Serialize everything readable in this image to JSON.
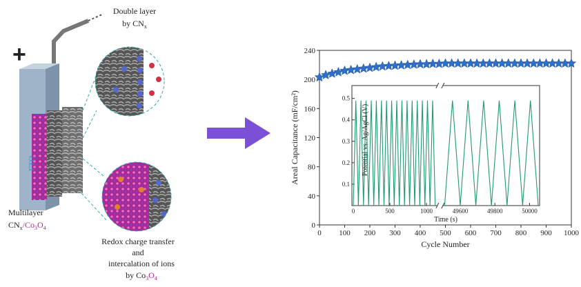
{
  "illustration": {
    "plus": "+",
    "double_layer": [
      "Double layer",
      "by CN",
      "x"
    ],
    "fto": "FTO",
    "multilayer": [
      "Multilayer",
      "CN",
      "x",
      "/Co",
      "3",
      "O",
      "4"
    ],
    "redox": [
      "Redox charge transfer",
      "and",
      "intercalation of ions",
      "by Co",
      "3",
      "O",
      "4"
    ]
  },
  "chart_data": [
    {
      "type": "scatter",
      "xlabel": "Cycle Number",
      "ylabel": "Areal Capacitance (mF/cm²)",
      "xlim": [
        0,
        1000
      ],
      "xticks": [
        0,
        100,
        200,
        300,
        400,
        500,
        600,
        700,
        800,
        900,
        1000
      ],
      "ylim": [
        0,
        240
      ],
      "yticks": [
        0,
        40,
        80,
        120,
        160,
        200,
        240
      ],
      "series": [
        {
          "color": "#2f6fc7",
          "x": [
            0,
            25,
            50,
            75,
            100,
            125,
            150,
            175,
            200,
            225,
            250,
            275,
            300,
            325,
            350,
            375,
            400,
            425,
            450,
            475,
            500,
            525,
            550,
            575,
            600,
            625,
            650,
            675,
            700,
            725,
            750,
            775,
            800,
            825,
            850,
            875,
            900,
            925,
            950,
            975,
            1000
          ],
          "values": [
            203,
            206,
            208,
            210,
            212,
            213,
            214,
            215,
            216,
            217,
            218,
            218.5,
            219,
            219.5,
            220,
            220.5,
            221,
            221,
            221.5,
            221.5,
            222,
            222,
            222,
            222,
            222,
            222,
            222,
            222,
            222,
            222,
            222,
            222,
            222,
            222,
            222,
            222,
            222,
            222,
            222,
            222,
            222
          ]
        }
      ]
    },
    {
      "type": "line",
      "xlabel": "Time (s)",
      "ylabel": "Potential vs. Ag/AgCl (V)",
      "ylim": [
        0,
        0.56
      ],
      "yticks": [
        0.1,
        0.2,
        0.3,
        0.4,
        0.5
      ],
      "color": "#1f9a6e",
      "panels": [
        {
          "xlim": [
            0,
            1150
          ],
          "xticks": [
            0,
            500,
            1000
          ],
          "x": [
            0,
            35,
            70,
            105,
            140,
            175,
            210,
            245,
            280,
            315,
            350,
            385,
            420,
            455,
            490,
            525,
            560,
            595,
            630,
            665,
            700,
            735,
            770,
            805,
            840,
            875,
            910,
            945,
            980,
            1015,
            1050,
            1085,
            1120
          ],
          "values": [
            0,
            0.49,
            0,
            0.49,
            0,
            0.49,
            0,
            0.49,
            0,
            0.49,
            0,
            0.49,
            0,
            0.49,
            0,
            0.49,
            0,
            0.49,
            0,
            0.49,
            0,
            0.49,
            0,
            0.49,
            0,
            0.49,
            0,
            0.49,
            0,
            0.49,
            0,
            0.49,
            0
          ]
        },
        {
          "xlim": [
            49500,
            50050
          ],
          "xticks": [
            49600,
            49800,
            50000
          ],
          "x": [
            49510,
            49555,
            49600,
            49645,
            49690,
            49735,
            49780,
            49825,
            49870,
            49915,
            49960,
            50005,
            50050
          ],
          "values": [
            0,
            0.49,
            0,
            0.49,
            0,
            0.49,
            0,
            0.49,
            0,
            0.49,
            0,
            0.49,
            0
          ]
        }
      ]
    }
  ]
}
